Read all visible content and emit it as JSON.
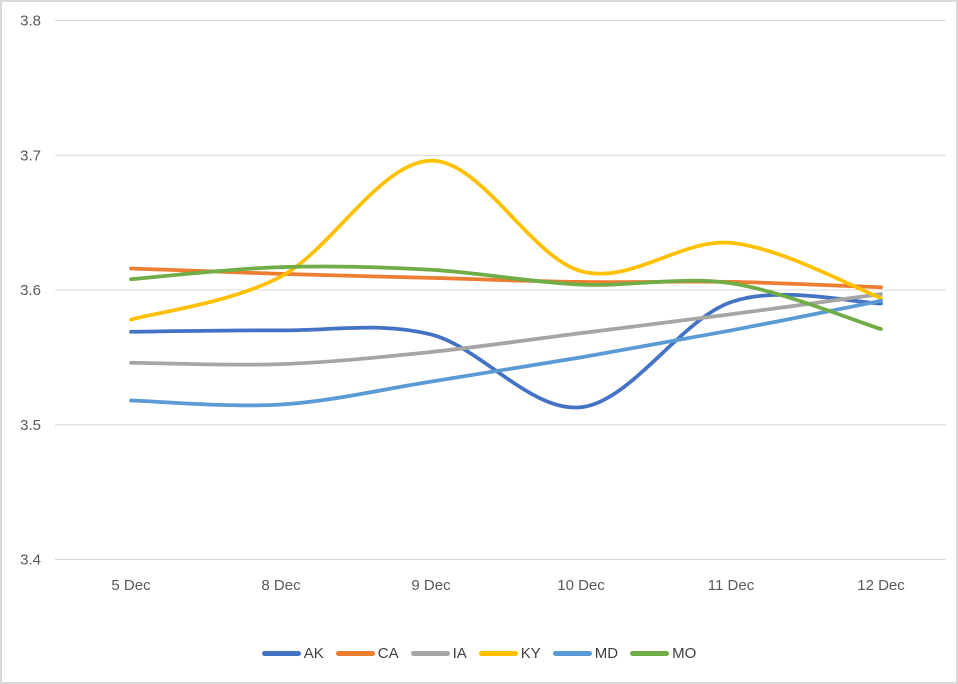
{
  "chart_data": {
    "type": "line",
    "title": "",
    "smooth": true,
    "grid": true,
    "legend_position": "bottom",
    "categories": [
      "5 Dec",
      "8 Dec",
      "9 Dec",
      "10 Dec",
      "11 Dec",
      "12 Dec"
    ],
    "series": [
      {
        "name": "AK",
        "color": "#4472C4",
        "values": [
          3.569,
          3.57,
          3.567,
          3.513,
          3.591,
          3.59
        ]
      },
      {
        "name": "CA",
        "color": "#ED7D31",
        "values": [
          3.616,
          3.612,
          3.609,
          3.606,
          3.606,
          3.602
        ]
      },
      {
        "name": "IA",
        "color": "#A5A5A5",
        "values": [
          3.546,
          3.545,
          3.554,
          3.568,
          3.582,
          3.597
        ]
      },
      {
        "name": "KY",
        "color": "#FFC000",
        "values": [
          3.578,
          3.61,
          3.696,
          3.614,
          3.635,
          3.594
        ]
      },
      {
        "name": "MD",
        "color": "#5B9BD5",
        "values": [
          3.518,
          3.515,
          3.532,
          3.55,
          3.57,
          3.592
        ]
      },
      {
        "name": "MO",
        "color": "#70AD47",
        "values": [
          3.608,
          3.617,
          3.615,
          3.604,
          3.605,
          3.571
        ]
      }
    ],
    "y_axis": {
      "min": 3.4,
      "max": 3.8,
      "step": 0.1,
      "tick_labels": [
        "3.4",
        "3.5",
        "3.6",
        "3.7",
        "3.8"
      ]
    },
    "xlabel": "",
    "ylabel": ""
  },
  "colors": {
    "gridline": "#D9D9D9",
    "axis_text": "#595959",
    "legend_text": "#404040",
    "border": "#D9D9D9",
    "background": "#FFFFFF"
  }
}
